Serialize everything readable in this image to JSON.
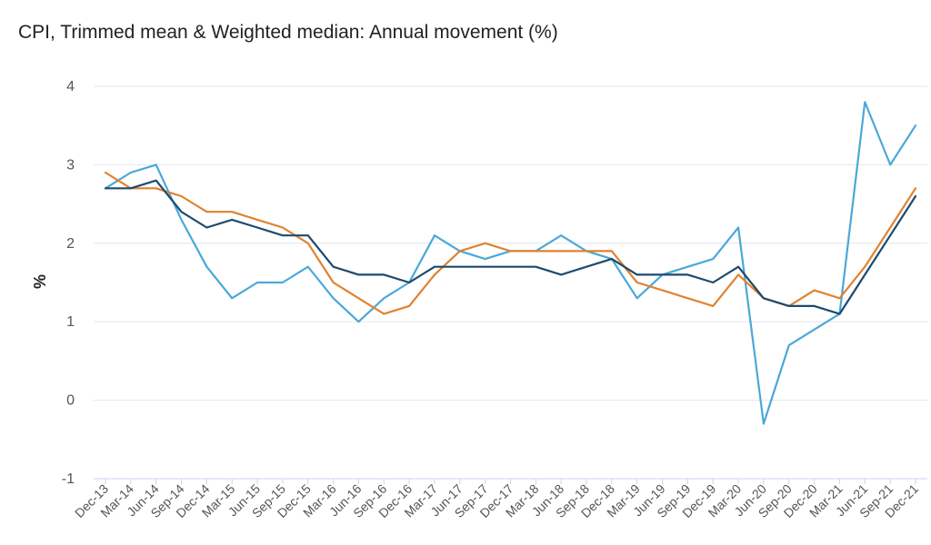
{
  "chart_data": {
    "type": "line",
    "title": "CPI, Trimmed mean & Weighted median: Annual movement (%)",
    "xlabel": "",
    "ylabel": "%",
    "ylim": [
      -1,
      4
    ],
    "yticks": [
      "4",
      "3",
      "2",
      "1",
      "0",
      "-1"
    ],
    "grid": true,
    "categories": [
      "Dec-13",
      "Mar-14",
      "Jun-14",
      "Sep-14",
      "Dec-14",
      "Mar-15",
      "Jun-15",
      "Sep-15",
      "Dec-15",
      "Mar-16",
      "Jun-16",
      "Sep-16",
      "Dec-16",
      "Mar-17",
      "Jun-17",
      "Sep-17",
      "Dec-17",
      "Mar-18",
      "Jun-18",
      "Sep-18",
      "Dec-18",
      "Mar-19",
      "Jun-19",
      "Sep-19",
      "Dec-19",
      "Mar-20",
      "Jun-20",
      "Sep-20",
      "Dec-20",
      "Mar-21",
      "Jun-21",
      "Sep-21",
      "Dec-21"
    ],
    "series": [
      {
        "color": "#4aa8d8",
        "values": [
          2.7,
          2.9,
          3.0,
          2.3,
          1.7,
          1.3,
          1.5,
          1.5,
          1.7,
          1.3,
          1.0,
          1.3,
          1.5,
          2.1,
          1.9,
          1.8,
          1.9,
          1.9,
          2.1,
          1.9,
          1.8,
          1.3,
          1.6,
          1.7,
          1.8,
          2.2,
          -0.3,
          0.7,
          0.9,
          1.1,
          3.8,
          3.0,
          3.5
        ]
      },
      {
        "color": "#e0822f",
        "values": [
          2.9,
          2.7,
          2.7,
          2.6,
          2.4,
          2.4,
          2.3,
          2.2,
          2.0,
          1.5,
          1.3,
          1.1,
          1.2,
          1.6,
          1.9,
          2.0,
          1.9,
          1.9,
          1.9,
          1.9,
          1.9,
          1.5,
          1.4,
          1.3,
          1.2,
          1.6,
          1.3,
          1.2,
          1.4,
          1.3,
          1.7,
          2.2,
          2.7
        ]
      },
      {
        "color": "#1c4a6e",
        "values": [
          2.7,
          2.7,
          2.8,
          2.4,
          2.2,
          2.3,
          2.2,
          2.1,
          2.1,
          1.7,
          1.6,
          1.6,
          1.5,
          1.7,
          1.7,
          1.7,
          1.7,
          1.7,
          1.6,
          1.7,
          1.8,
          1.6,
          1.6,
          1.6,
          1.5,
          1.7,
          1.3,
          1.2,
          1.2,
          1.1,
          1.6,
          2.1,
          2.6
        ]
      }
    ]
  }
}
